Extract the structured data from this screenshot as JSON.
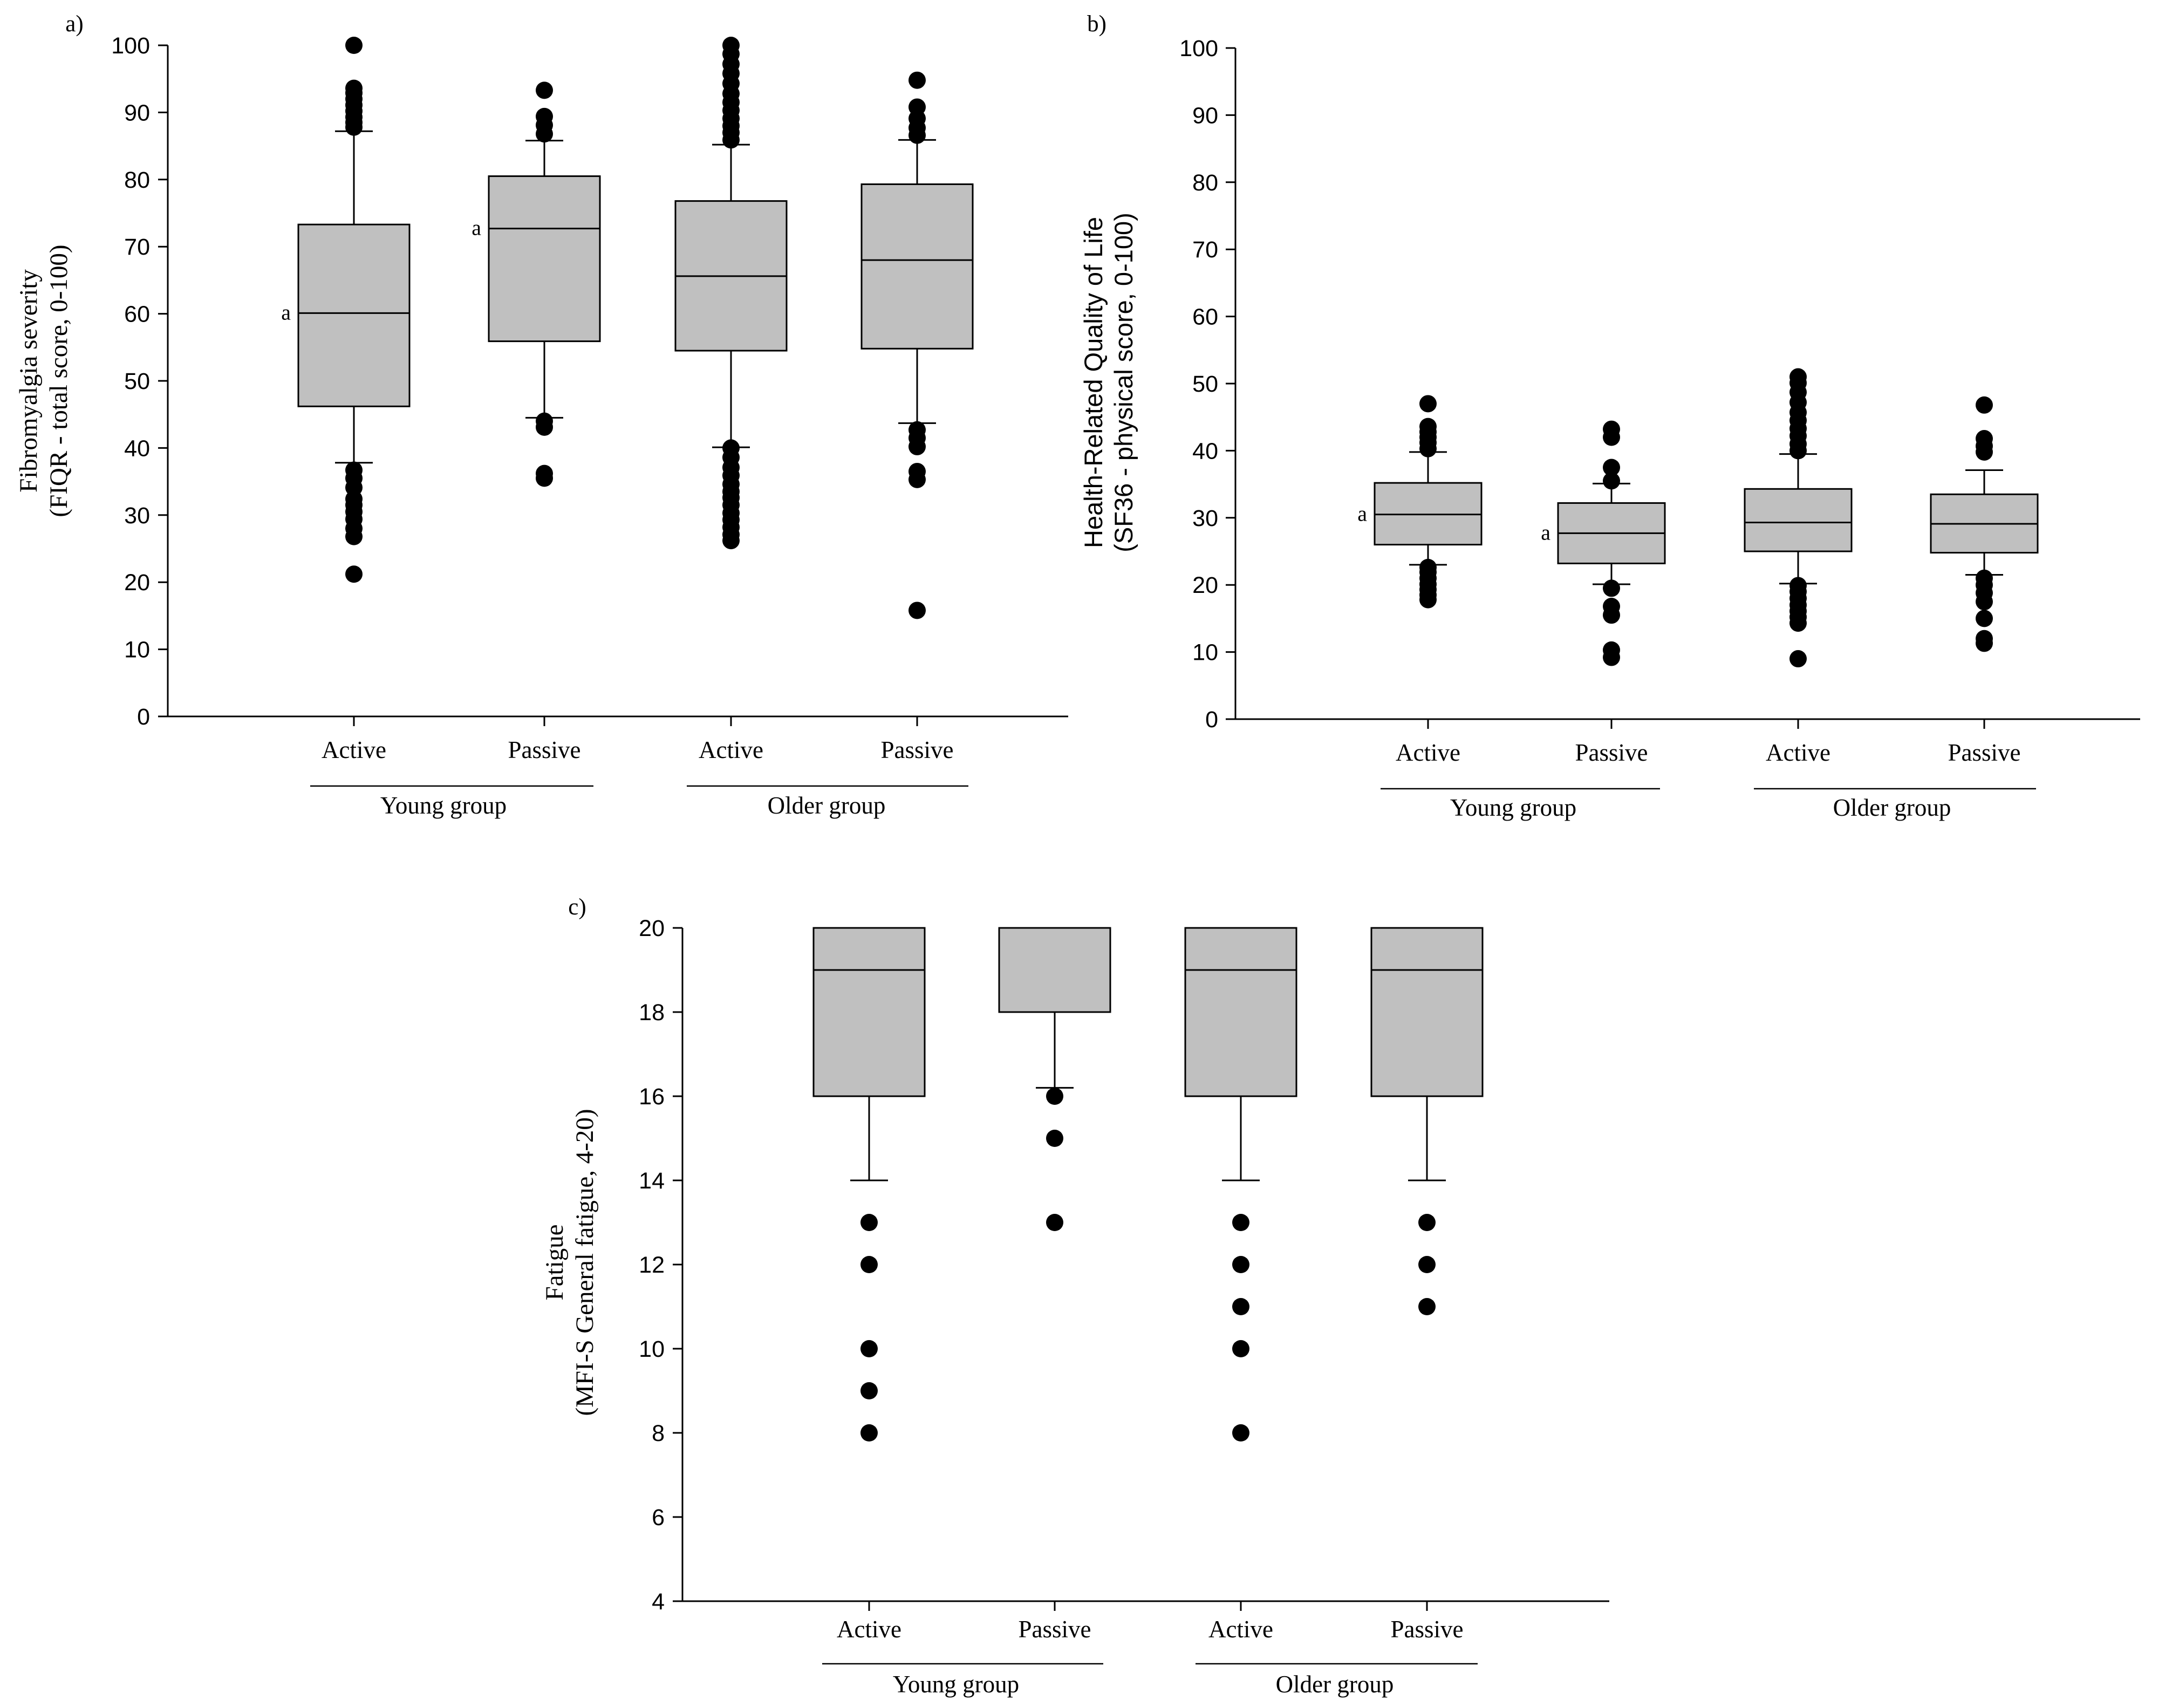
{
  "chart_data": [
    {
      "type": "boxplot",
      "panel_label": "a)",
      "ylabel_line1": "Fibromyalgia severity",
      "ylabel_line2": "(FIQR - total score, 0-100)",
      "ylim": [
        0,
        100
      ],
      "yticks": [
        "0",
        "10",
        "20",
        "30",
        "40",
        "50",
        "60",
        "70",
        "80",
        "90",
        "100"
      ],
      "categories": [
        "Active",
        "Passive",
        "Active",
        "Passive"
      ],
      "groups": [
        "Young group",
        "Older group"
      ],
      "boxes": [
        {
          "q1": 46.2,
          "median": 60.1,
          "q3": 73.3,
          "whisker_low": 37.8,
          "whisker_high": 87.2,
          "annotation": "a",
          "outliers": [
            21.2,
            26.8,
            28.0,
            29.4,
            30.5,
            31.5,
            32.4,
            34.1,
            35.5,
            36.7,
            87.8,
            88.5,
            89.3,
            90.2,
            91.1,
            92.0,
            92.9,
            93.6,
            100.0
          ]
        },
        {
          "q1": 55.9,
          "median": 72.7,
          "q3": 80.5,
          "whisker_low": 44.5,
          "whisker_high": 85.8,
          "annotation": "a",
          "outliers": [
            35.5,
            36.2,
            43.1,
            44.0,
            86.8,
            88.1,
            89.4,
            93.3
          ]
        },
        {
          "q1": 54.5,
          "median": 65.6,
          "q3": 76.8,
          "whisker_low": 40.1,
          "whisker_high": 85.2,
          "annotation": "",
          "outliers": [
            26.2,
            27.1,
            28.2,
            29.3,
            30.3,
            31.5,
            32.6,
            33.5,
            34.6,
            35.9,
            37.1,
            38.6,
            40.0,
            85.9,
            87.0,
            88.0,
            89.1,
            90.3,
            91.5,
            92.8,
            94.3,
            95.8,
            97.2,
            98.7,
            100.0
          ]
        },
        {
          "q1": 54.8,
          "median": 68.0,
          "q3": 79.3,
          "whisker_low": 43.7,
          "whisker_high": 85.9,
          "annotation": "",
          "outliers": [
            15.8,
            35.3,
            36.5,
            40.2,
            41.5,
            42.7,
            86.6,
            87.7,
            89.1,
            90.8,
            94.8
          ]
        }
      ]
    },
    {
      "type": "boxplot",
      "panel_label": "b)",
      "ylabel_line1": "Health-Related Quality of Life",
      "ylabel_line2": "(SF36 - physical score, 0-100)",
      "ylim": [
        0,
        100
      ],
      "yticks": [
        "0",
        "10",
        "20",
        "30",
        "40",
        "50",
        "60",
        "70",
        "80",
        "90",
        "100"
      ],
      "categories": [
        "Active",
        "Passive",
        "Active",
        "Passive"
      ],
      "groups": [
        "Young group",
        "Older group"
      ],
      "boxes": [
        {
          "q1": 26.0,
          "median": 30.5,
          "q3": 35.2,
          "whisker_low": 23.0,
          "whisker_high": 39.8,
          "annotation": "a",
          "outliers": [
            17.8,
            18.5,
            19.3,
            20.1,
            21.0,
            21.9,
            22.6,
            40.3,
            41.2,
            42.0,
            42.8,
            43.6,
            47.0
          ]
        },
        {
          "q1": 23.2,
          "median": 27.7,
          "q3": 32.2,
          "whisker_low": 20.1,
          "whisker_high": 35.1,
          "annotation": "a",
          "outliers": [
            9.2,
            10.3,
            15.5,
            16.8,
            19.5,
            35.5,
            37.5,
            42.0,
            43.2
          ]
        },
        {
          "q1": 25.0,
          "median": 29.3,
          "q3": 34.3,
          "whisker_low": 20.2,
          "whisker_high": 39.5,
          "annotation": "",
          "outliers": [
            9.0,
            14.3,
            15.2,
            16.1,
            17.0,
            18.0,
            19.0,
            19.9,
            40.0,
            41.0,
            42.2,
            43.3,
            44.5,
            45.7,
            47.2,
            48.7,
            50.1,
            51.0
          ]
        },
        {
          "q1": 24.8,
          "median": 29.1,
          "q3": 33.5,
          "whisker_low": 21.5,
          "whisker_high": 37.1,
          "annotation": "",
          "outliers": [
            11.3,
            12.0,
            15.0,
            17.5,
            18.8,
            20.0,
            21.0,
            39.8,
            40.7,
            41.8,
            46.8
          ]
        }
      ]
    },
    {
      "type": "boxplot",
      "panel_label": "c)",
      "ylabel_line1": "Fatigue",
      "ylabel_line2": "(MFI-S General fatigue, 4-20)",
      "ylim": [
        4,
        20
      ],
      "yticks": [
        "4",
        "6",
        "8",
        "10",
        "12",
        "14",
        "16",
        "18",
        "20"
      ],
      "categories": [
        "Active",
        "Passive",
        "Active",
        "Passive"
      ],
      "groups": [
        "Young group",
        "Older group"
      ],
      "boxes": [
        {
          "q1": 16,
          "median": 19,
          "q3": 20,
          "whisker_low": 14,
          "whisker_high": 20,
          "annotation": "",
          "outliers": [
            8,
            9,
            10,
            12,
            13
          ]
        },
        {
          "q1": 18,
          "median": 20,
          "q3": 20,
          "whisker_low": 16.2,
          "whisker_high": 20,
          "annotation": "",
          "outliers": [
            13,
            15,
            16
          ]
        },
        {
          "q1": 16,
          "median": 19,
          "q3": 20,
          "whisker_low": 14,
          "whisker_high": 20,
          "annotation": "",
          "outliers": [
            8,
            10,
            11,
            12,
            13
          ]
        },
        {
          "q1": 16,
          "median": 19,
          "q3": 20,
          "whisker_low": 14,
          "whisker_high": 20,
          "annotation": "",
          "outliers": [
            11,
            12,
            13
          ]
        }
      ]
    }
  ],
  "colors": {
    "box_fill": "#c0c0c0",
    "stroke": "#000000",
    "background": "#ffffff"
  }
}
